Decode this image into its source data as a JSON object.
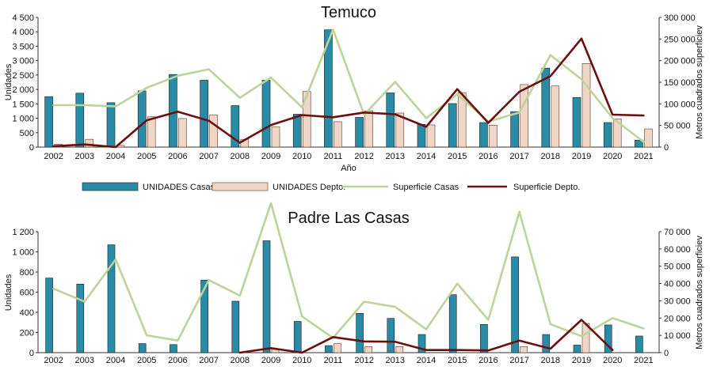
{
  "colors": {
    "casas_bar": "#2a8ba6",
    "depto_bar": "#f0d6c6",
    "casas_line": "#bcd39a",
    "depto_line": "#6b0f0f"
  },
  "legend": {
    "casas_units": "UNIDADES Casas",
    "depto_units": "UNIDADES Depto.",
    "casas_surface": "Superficie Casas",
    "depto_surface": "Superficie Depto."
  },
  "chart_data": [
    {
      "type": "bar",
      "title": "Temuco",
      "xlabel": "Año",
      "ylabel": "Unidades",
      "y2label": "Metros cuadrados superficiev",
      "categories": [
        "2002",
        "2003",
        "2004",
        "2005",
        "2006",
        "2007",
        "2008",
        "2009",
        "2010",
        "2011",
        "2012",
        "2013",
        "2014",
        "2015",
        "2016",
        "2017",
        "2018",
        "2019",
        "2020",
        "2021"
      ],
      "ylim": [
        0,
        4500
      ],
      "yticks": [
        "0",
        "500",
        "1 000",
        "1 500",
        "2 000",
        "2 500",
        "3 000",
        "3 500",
        "4 000",
        "4 500"
      ],
      "y2lim": [
        0,
        300000
      ],
      "y2ticks": [
        "0",
        "50 000",
        "100 000",
        "150 000",
        "200 000",
        "250 000",
        "300 000"
      ],
      "series": [
        {
          "name": "UNIDADES Casas",
          "kind": "bar",
          "axis": "left",
          "values": [
            1750,
            1870,
            1540,
            1950,
            2520,
            2320,
            1440,
            2320,
            1140,
            4070,
            1030,
            1880,
            790,
            1510,
            850,
            1230,
            2740,
            1720,
            850,
            240
          ]
        },
        {
          "name": "UNIDADES Depto.",
          "kind": "bar",
          "axis": "left",
          "values": [
            100,
            270,
            60,
            1050,
            990,
            1120,
            270,
            700,
            1930,
            880,
            1260,
            1180,
            770,
            1890,
            760,
            2170,
            2120,
            2900,
            980,
            630
          ]
        },
        {
          "name": "Superficie Casas",
          "kind": "line",
          "axis": "right",
          "values": [
            97000,
            97000,
            94000,
            137000,
            165000,
            180000,
            114000,
            161000,
            92000,
            272000,
            75000,
            151000,
            67000,
            122000,
            59000,
            80000,
            213000,
            157000,
            67000,
            12000
          ]
        },
        {
          "name": "Superficie Depto.",
          "kind": "line",
          "axis": "right",
          "values": [
            2000,
            6000,
            0,
            62000,
            82000,
            61000,
            10000,
            51000,
            74000,
            69000,
            80000,
            76000,
            47000,
            134000,
            56000,
            128000,
            164000,
            251000,
            75000,
            73000
          ]
        }
      ]
    },
    {
      "type": "bar",
      "title": "Padre Las Casas",
      "xlabel": "",
      "ylabel": "Unidades",
      "y2label": "Metros cuadrados superficiev",
      "categories": [
        "2002",
        "2003",
        "2004",
        "2005",
        "2006",
        "2007",
        "2008",
        "2009",
        "2010",
        "2011",
        "2012",
        "2013",
        "2014",
        "2015",
        "2016",
        "2017",
        "2018",
        "2019",
        "2020",
        "2021"
      ],
      "ylim": [
        0,
        1200
      ],
      "yticks": [
        "0",
        "200",
        "400",
        "600",
        "800",
        "1 000",
        "1 200"
      ],
      "y2lim": [
        0,
        70000
      ],
      "y2ticks": [
        "0",
        "10 000",
        "20 000",
        "30 000",
        "40 000",
        "50 000",
        "60 000",
        "70 000"
      ],
      "series": [
        {
          "name": "UNIDADES Casas",
          "kind": "bar",
          "axis": "left",
          "values": [
            740,
            680,
            1070,
            90,
            80,
            720,
            510,
            1110,
            310,
            70,
            390,
            340,
            180,
            575,
            280,
            950,
            180,
            75,
            275,
            165
          ]
        },
        {
          "name": "UNIDADES Depto.",
          "kind": "bar",
          "axis": "left",
          "values": [
            0,
            0,
            0,
            0,
            0,
            0,
            0,
            40,
            0,
            90,
            60,
            60,
            0,
            0,
            0,
            60,
            0,
            290,
            0,
            0
          ]
        },
        {
          "name": "Superficie Casas",
          "kind": "line",
          "axis": "right",
          "values": [
            37000,
            29500,
            54000,
            10000,
            7000,
            42000,
            33000,
            86500,
            21000,
            8500,
            29500,
            26500,
            13500,
            40000,
            19000,
            81500,
            16500,
            9500,
            20000,
            14000
          ]
        },
        {
          "name": "Superficie Depto.",
          "kind": "line",
          "axis": "right",
          "values": [
            null,
            null,
            null,
            null,
            null,
            null,
            0,
            2600,
            0,
            9000,
            6500,
            6300,
            1500,
            1500,
            1300,
            7000,
            2300,
            19000,
            1500,
            null
          ]
        }
      ]
    }
  ]
}
